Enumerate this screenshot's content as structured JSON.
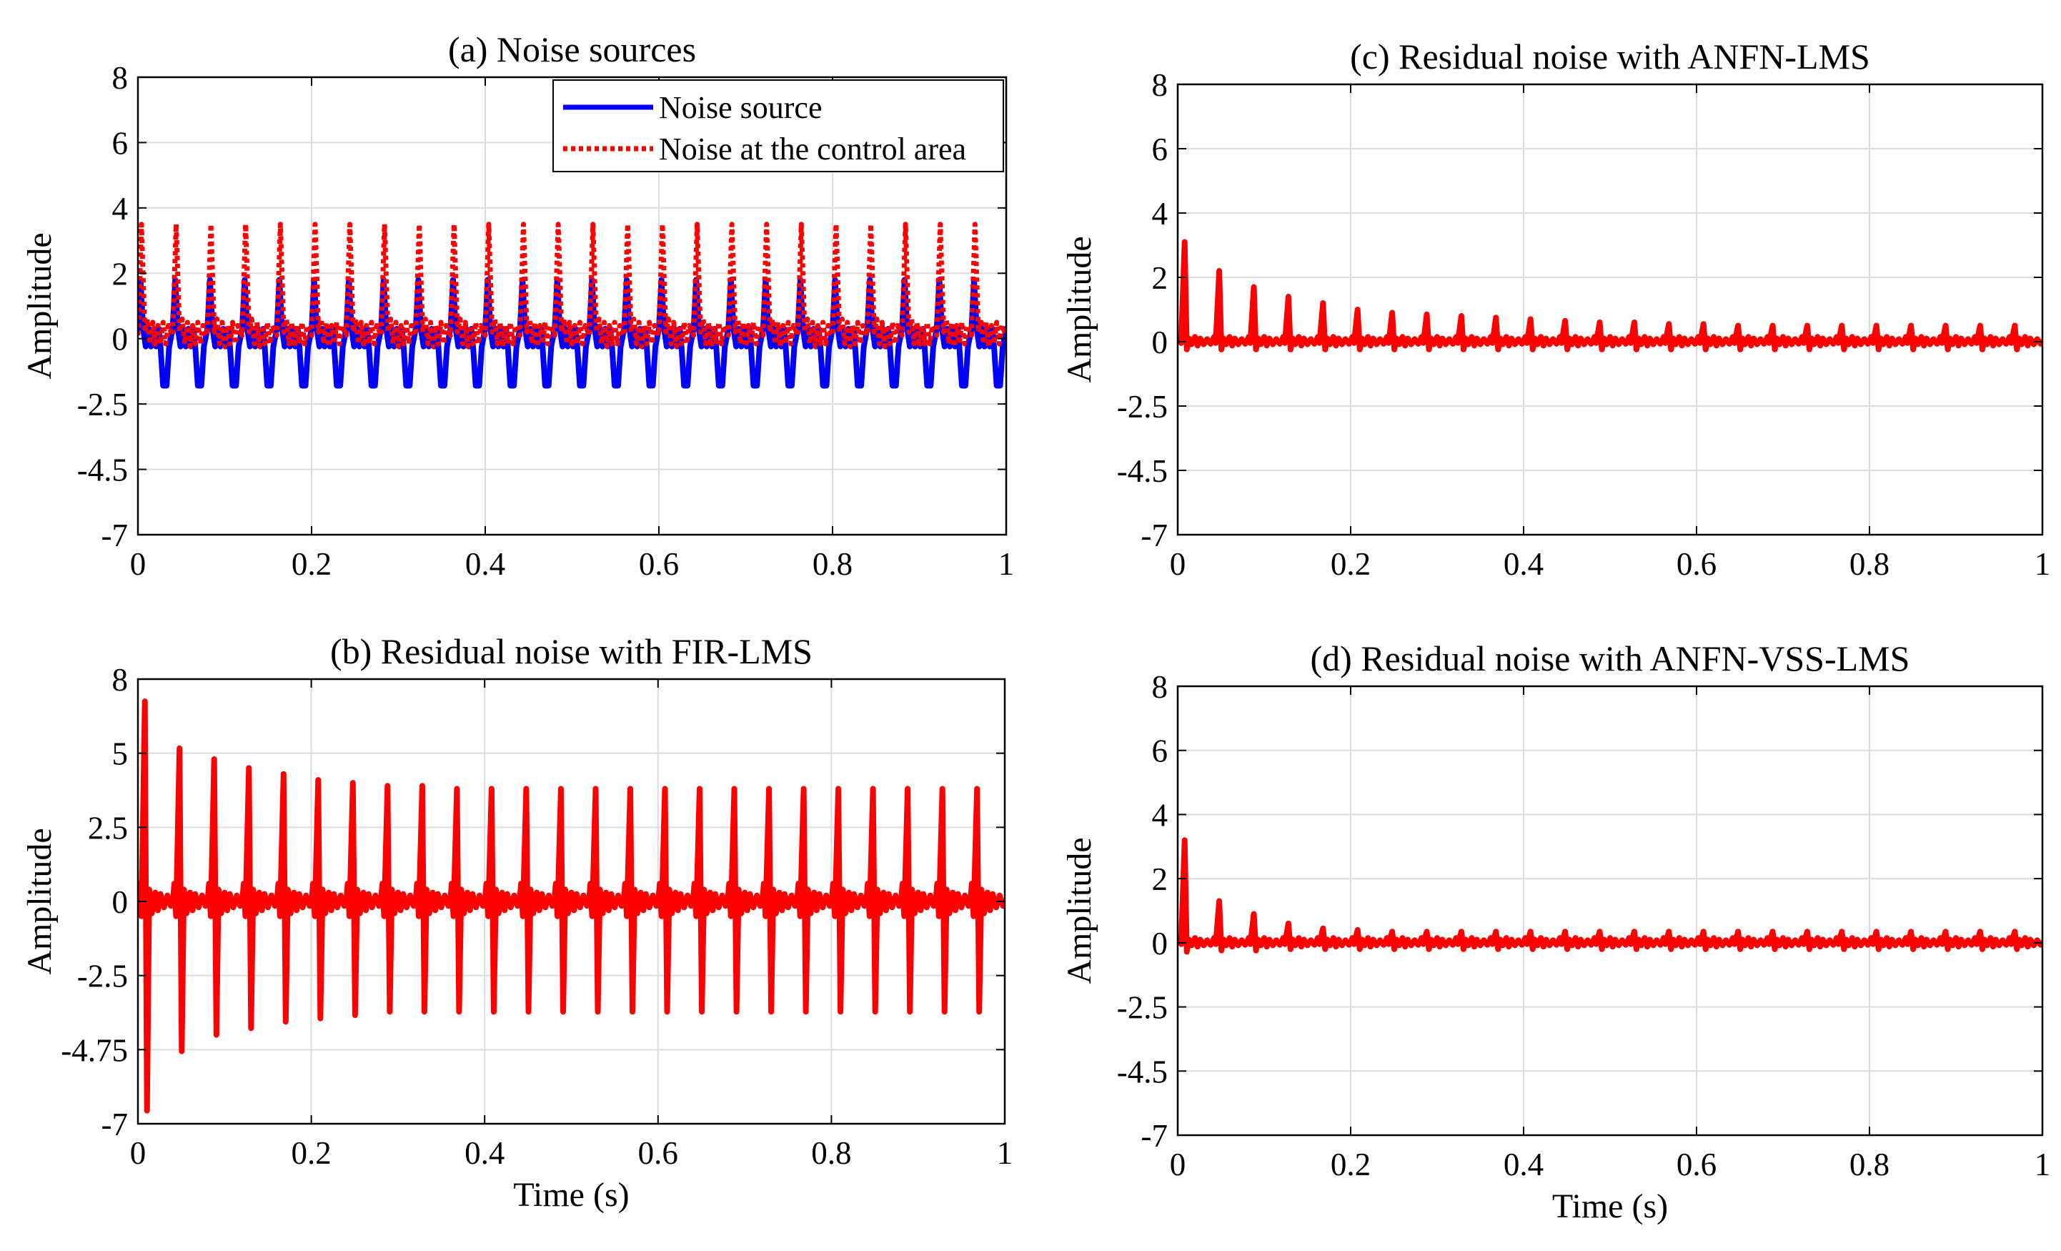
{
  "chart_data": [
    {
      "type": "line",
      "title": "(a) Noise sources",
      "xlabel": "",
      "ylabel": "Amplitude",
      "xlim": [
        0,
        1
      ],
      "ylim": [
        -7,
        8
      ],
      "xticks": [
        0,
        0.2,
        0.4,
        0.6,
        0.8,
        1
      ],
      "xtick_labels": [
        "0",
        "0.2",
        "0.4",
        "0.6",
        "0.8",
        "1"
      ],
      "yticks": [
        8,
        6,
        4,
        2,
        0,
        -2.5,
        -4.5,
        -7
      ],
      "ytick_labels": [
        "8",
        "6",
        "4",
        "2",
        "0",
        "-2.5",
        "-4.5",
        "-7"
      ],
      "grid": true,
      "legend": "top-right",
      "period_s": 0.04,
      "series": [
        {
          "name": "Noise source",
          "color": "#0000ff",
          "style": "solid",
          "peak_max": 1.8,
          "trough_min": -1.8,
          "cycle": [
            [
              0,
              0.3
            ],
            [
              0.003,
              1.8
            ],
            [
              0.006,
              0.3
            ],
            [
              0.009,
              -0.3
            ],
            [
              0.012,
              0.3
            ],
            [
              0.015,
              -0.3
            ],
            [
              0.018,
              0.3
            ],
            [
              0.021,
              -0.3
            ],
            [
              0.024,
              0.3
            ],
            [
              0.026,
              -0.3
            ],
            [
              0.029,
              -1.8
            ],
            [
              0.033,
              -1.8
            ],
            [
              0.036,
              -0.3
            ],
            [
              0.04,
              0.3
            ]
          ]
        },
        {
          "name": "Noise at the control area",
          "color": "#ff0000",
          "style": "dotted",
          "peak_max": 3.5,
          "trough_min": -0.3,
          "cycle": [
            [
              0,
              0.1
            ],
            [
              0.004,
              3.5
            ],
            [
              0.008,
              0.2
            ],
            [
              0.011,
              0.6
            ],
            [
              0.014,
              -0.2
            ],
            [
              0.017,
              0.5
            ],
            [
              0.02,
              -0.3
            ],
            [
              0.023,
              0.4
            ],
            [
              0.026,
              -0.2
            ],
            [
              0.029,
              0.5
            ],
            [
              0.032,
              -0.2
            ],
            [
              0.035,
              0.4
            ],
            [
              0.04,
              0.1
            ]
          ]
        }
      ]
    },
    {
      "type": "line",
      "title": "(b) Residual noise with FIR-LMS",
      "xlabel": "Time (s)",
      "ylabel": "Amplitude",
      "xlim": [
        0,
        1
      ],
      "ylim": [
        -7,
        8
      ],
      "xticks": [
        0,
        0.2,
        0.4,
        0.6,
        0.8,
        1
      ],
      "xtick_labels": [
        "0",
        "0.2",
        "0.4",
        "0.6",
        "0.8",
        "1"
      ],
      "yticks": [
        8,
        5,
        2.5,
        0,
        -2.5,
        -4.75,
        -7
      ],
      "ytick_labels": [
        "8",
        "5",
        "2.5",
        "0",
        "-2.5",
        "-4.75",
        "-7"
      ],
      "grid": true,
      "period_s": 0.04,
      "series": [
        {
          "color": "#ff0000",
          "style": "solid",
          "peak_max": 7.1,
          "trough_min": -6.6,
          "spike_peaks": [
            7.1,
            5.2,
            4.8,
            4.5,
            4.3,
            4.1,
            4.0,
            3.9,
            3.9,
            3.8,
            3.8,
            3.8,
            3.8,
            3.8,
            3.8,
            3.8,
            3.8,
            3.8,
            3.8,
            3.8,
            3.8,
            3.8,
            3.8,
            3.8,
            3.8
          ],
          "spike_troughs": [
            -6.6,
            -4.8,
            -4.3,
            -4.1,
            -3.9,
            -3.8,
            -3.7,
            -3.6,
            -3.6,
            -3.6,
            -3.6,
            -3.6,
            -3.6,
            -3.6,
            -3.6,
            -3.6,
            -3.6,
            -3.6,
            -3.6,
            -3.6,
            -3.6,
            -3.6,
            -3.6,
            -3.6,
            -3.6
          ],
          "ripple_amplitude": 1.0
        }
      ]
    },
    {
      "type": "line",
      "title": "(c)  Residual noise with ANFN-LMS",
      "xlabel": "",
      "ylabel": "Amplitude",
      "xlim": [
        0,
        1
      ],
      "ylim": [
        -7,
        8
      ],
      "xticks": [
        0,
        0.2,
        0.4,
        0.6,
        0.8,
        1
      ],
      "xtick_labels": [
        "0",
        "0.2",
        "0.4",
        "0.6",
        "0.8",
        "1"
      ],
      "yticks": [
        8,
        6,
        4,
        2,
        0,
        -2.5,
        -4.5,
        -7
      ],
      "ytick_labels": [
        "8",
        "6",
        "4",
        "2",
        "0",
        "-2.5",
        "-4.5",
        "-7"
      ],
      "grid": true,
      "period_s": 0.04,
      "series": [
        {
          "color": "#ff0000",
          "style": "solid",
          "peak_max": 3.1,
          "trough_min": -0.3,
          "spike_peaks": [
            3.1,
            2.2,
            1.7,
            1.4,
            1.2,
            1.0,
            0.9,
            0.85,
            0.8,
            0.75,
            0.7,
            0.65,
            0.6,
            0.6,
            0.55,
            0.55,
            0.5,
            0.5,
            0.5,
            0.5,
            0.5,
            0.5,
            0.5,
            0.5,
            0.5
          ],
          "spike_troughs": [
            -0.3,
            -0.3,
            -0.3,
            -0.3,
            -0.3,
            -0.3,
            -0.3,
            -0.3,
            -0.3,
            -0.3,
            -0.3,
            -0.3,
            -0.3,
            -0.3,
            -0.3,
            -0.3,
            -0.3,
            -0.3,
            -0.3,
            -0.3,
            -0.3,
            -0.3,
            -0.3,
            -0.3,
            -0.3
          ]
        }
      ]
    },
    {
      "type": "line",
      "title": "(d)  Residual noise with ANFN-VSS-LMS",
      "xlabel": "Time (s)",
      "ylabel": "Amplitude",
      "xlim": [
        0,
        1
      ],
      "ylim": [
        -7,
        8
      ],
      "xticks": [
        0,
        0.2,
        0.4,
        0.6,
        0.8,
        1
      ],
      "xtick_labels": [
        "0",
        "0.2",
        "0.4",
        "0.6",
        "0.8",
        "1"
      ],
      "yticks": [
        8,
        6,
        4,
        2,
        0,
        -2.5,
        -4.5,
        -7
      ],
      "ytick_labels": [
        "8",
        "6",
        "4",
        "2",
        "0",
        "-2.5",
        "-4.5",
        "-7"
      ],
      "grid": true,
      "period_s": 0.04,
      "series": [
        {
          "color": "#ff0000",
          "style": "solid",
          "peak_max": 3.2,
          "trough_min": -0.35,
          "spike_peaks": [
            3.2,
            1.3,
            0.9,
            0.6,
            0.45,
            0.4,
            0.35,
            0.35,
            0.35,
            0.35,
            0.35,
            0.35,
            0.35,
            0.35,
            0.35,
            0.35,
            0.35,
            0.35,
            0.35,
            0.35,
            0.35,
            0.35,
            0.35,
            0.35,
            0.35
          ],
          "spike_troughs": [
            -0.35,
            -0.3,
            -0.3,
            -0.25,
            -0.25,
            -0.25,
            -0.25,
            -0.25,
            -0.25,
            -0.25,
            -0.25,
            -0.25,
            -0.25,
            -0.25,
            -0.25,
            -0.25,
            -0.25,
            -0.25,
            -0.25,
            -0.25,
            -0.25,
            -0.25,
            -0.25,
            -0.25,
            -0.25
          ]
        }
      ]
    }
  ]
}
